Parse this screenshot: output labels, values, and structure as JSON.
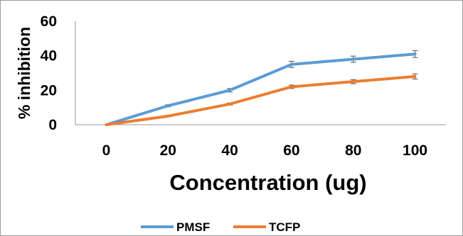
{
  "chart_data": {
    "type": "line",
    "x": [
      0,
      20,
      40,
      60,
      80,
      100
    ],
    "categories": [
      "0",
      "20",
      "40",
      "60",
      "80",
      "100"
    ],
    "xlabel": "Concentration (ug)",
    "ylabel": "% inhibition",
    "ylim": [
      0,
      60
    ],
    "yticks": [
      0,
      20,
      40,
      60
    ],
    "grid": false,
    "legend": "bottom",
    "series": [
      {
        "name": "PMSF",
        "color": "#5b9bd5",
        "values": [
          0,
          11,
          20,
          35,
          38,
          41
        ],
        "errors": [
          0,
          0.6,
          1.0,
          1.8,
          1.8,
          2.0
        ]
      },
      {
        "name": "TCFP",
        "color": "#ed7d31",
        "values": [
          0,
          5,
          12,
          22,
          25,
          28
        ],
        "errors": [
          0,
          0.4,
          0.6,
          1.0,
          1.2,
          1.5
        ]
      }
    ]
  }
}
